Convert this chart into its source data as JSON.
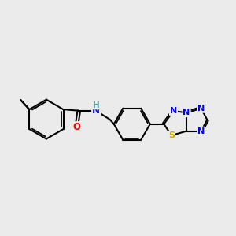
{
  "background_color": "#ebebeb",
  "bond_color": "#000000",
  "atom_colors": {
    "O": "#ff0000",
    "N": "#0000ff",
    "S": "#ccaa00",
    "H": "#5a9ea0",
    "C": "#000000"
  },
  "figsize": [
    3.0,
    3.0
  ],
  "dpi": 100
}
